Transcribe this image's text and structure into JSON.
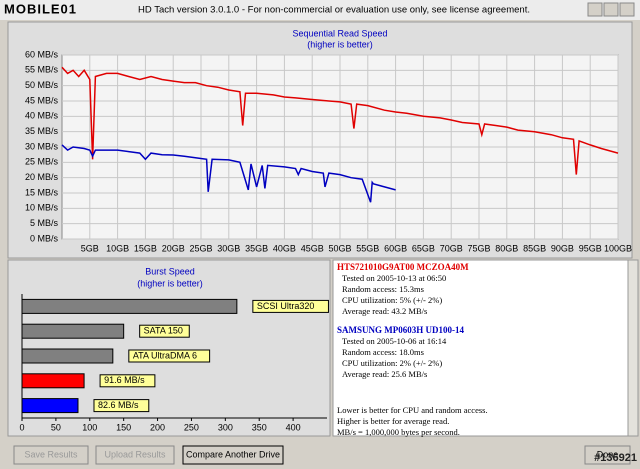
{
  "window": {
    "title": "HD Tach version 3.0.1.0  - For non-commercial or evaluation use only, see license agreement.",
    "watermark_logo": "MOBILE01",
    "watermark_id": "#136921"
  },
  "chart_data": [
    {
      "type": "line",
      "title": "Sequential Read Speed",
      "subtitle": "(higher is better)",
      "xlim": [
        0,
        100
      ],
      "ylim": [
        0,
        60
      ],
      "grid": true,
      "xticks": [
        {
          "value": 5,
          "label": "5GB"
        },
        {
          "value": 10,
          "label": "10GB"
        },
        {
          "value": 15,
          "label": "15GB"
        },
        {
          "value": 20,
          "label": "20GB"
        },
        {
          "value": 25,
          "label": "25GB"
        },
        {
          "value": 30,
          "label": "30GB"
        },
        {
          "value": 35,
          "label": "35GB"
        },
        {
          "value": 40,
          "label": "40GB"
        },
        {
          "value": 45,
          "label": "45GB"
        },
        {
          "value": 50,
          "label": "50GB"
        },
        {
          "value": 55,
          "label": "55GB"
        },
        {
          "value": 60,
          "label": "60GB"
        },
        {
          "value": 65,
          "label": "65GB"
        },
        {
          "value": 70,
          "label": "70GB"
        },
        {
          "value": 75,
          "label": "75GB"
        },
        {
          "value": 80,
          "label": "80GB"
        },
        {
          "value": 85,
          "label": "85GB"
        },
        {
          "value": 90,
          "label": "90GB"
        },
        {
          "value": 95,
          "label": "95GB"
        },
        {
          "value": 100,
          "label": "100GB"
        }
      ],
      "yticks": [
        {
          "value": 0,
          "label": "0 MB/s"
        },
        {
          "value": 5,
          "label": "5 MB/s"
        },
        {
          "value": 10,
          "label": "10 MB/s"
        },
        {
          "value": 15,
          "label": "15 MB/s"
        },
        {
          "value": 20,
          "label": "20 MB/s"
        },
        {
          "value": 25,
          "label": "25 MB/s"
        },
        {
          "value": 30,
          "label": "30 MB/s"
        },
        {
          "value": 35,
          "label": "35 MB/s"
        },
        {
          "value": 40,
          "label": "40 MB/s"
        },
        {
          "value": 45,
          "label": "45 MB/s"
        },
        {
          "value": 50,
          "label": "50 MB/s"
        },
        {
          "value": 55,
          "label": "55 MB/s"
        },
        {
          "value": 60,
          "label": "60 MB/s"
        }
      ],
      "series": [
        {
          "color": "#e00000",
          "x": [
            0,
            1,
            2,
            3,
            4,
            5,
            5.5,
            6,
            8,
            10,
            12,
            14,
            16,
            18,
            20,
            22,
            24,
            26,
            28,
            30,
            32,
            32.5,
            33,
            35,
            38,
            40,
            42,
            45,
            48,
            50,
            52,
            52.5,
            53,
            55,
            58,
            60,
            62,
            65,
            68,
            70,
            72,
            75,
            75.5,
            76,
            78,
            80,
            82,
            85,
            88,
            90,
            92,
            92.5,
            93,
            95,
            97,
            100
          ],
          "values": [
            56,
            54,
            55,
            53,
            55,
            52,
            26,
            53,
            54,
            54,
            53,
            52,
            53,
            52,
            51.5,
            51,
            51,
            50,
            49.5,
            48.6,
            48,
            37,
            47.5,
            47.5,
            47,
            46.3,
            46,
            45.5,
            45,
            44.7,
            44,
            36,
            44,
            43.5,
            42,
            41.4,
            41,
            40,
            39.5,
            38.8,
            38,
            37.5,
            34,
            37.5,
            37,
            36.5,
            35.5,
            35,
            34,
            33,
            32.5,
            21,
            32,
            30.7,
            29.5,
            28
          ]
        },
        {
          "color": "#0000c0",
          "x": [
            0,
            1,
            2,
            4,
            5,
            5.5,
            6,
            8,
            10,
            12,
            14,
            15,
            16,
            18,
            20,
            22,
            24,
            26,
            26.3,
            27,
            30,
            32,
            33.5,
            34,
            35,
            36,
            36.5,
            37,
            40,
            42,
            42.5,
            43,
            45,
            47,
            47.3,
            48,
            50,
            52,
            54,
            55.5,
            55.8,
            56,
            58,
            60
          ],
          "values": [
            30.7,
            29,
            30,
            29.5,
            29,
            27,
            29,
            29,
            29,
            28.5,
            28,
            26,
            28,
            27.5,
            27.4,
            27,
            26.5,
            26,
            15.4,
            26,
            25.8,
            25,
            16,
            24.5,
            17,
            24,
            16.5,
            24,
            23.5,
            23,
            21,
            23,
            22,
            21.5,
            17,
            21.5,
            21,
            20,
            19.5,
            12,
            18.5,
            18,
            17,
            16
          ]
        }
      ]
    },
    {
      "type": "bar",
      "orientation": "horizontal",
      "title": "Burst Speed",
      "subtitle": "(higher is better)",
      "categories": [
        "SCSI Ultra320",
        "SATA 150",
        "ATA UltraDMA 6",
        null,
        null
      ],
      "values": [
        317,
        150,
        134,
        91.6,
        82.6
      ],
      "value_labels": [
        null,
        null,
        null,
        "91.6 MB/s",
        "82.6 MB/s"
      ],
      "colors": [
        "#808080",
        "#808080",
        "#808080",
        "#ff0000",
        "#0000ff"
      ],
      "xlim": [
        0,
        450
      ],
      "xticks": [
        0,
        50,
        100,
        150,
        200,
        250,
        300,
        350,
        400
      ]
    }
  ],
  "info": {
    "drives": [
      {
        "name": "HTS721010G9AT00 MCZOA40M",
        "color": "#e00000",
        "lines": [
          "Tested on 2005-10-13 at 06:50",
          "Random access: 15.3ms",
          "CPU utilization: 5% (+/- 2%)",
          "Average read: 43.2 MB/s"
        ]
      },
      {
        "name": "SAMSUNG MP0603H UD100-14",
        "color": "#0000c0",
        "lines": [
          "Tested on 2005-10-06 at 16:14",
          "Random access: 18.0ms",
          "CPU utilization: 2% (+/- 2%)",
          "Average read: 25.6 MB/s"
        ]
      }
    ],
    "notes": [
      "Lower is better for CPU and random access.",
      "Higher is better for average read.",
      "MB/s = 1,000,000 bytes per second."
    ]
  },
  "buttons": [
    "Save Results",
    "Upload Results",
    "Compare Another Drive",
    "Done"
  ]
}
